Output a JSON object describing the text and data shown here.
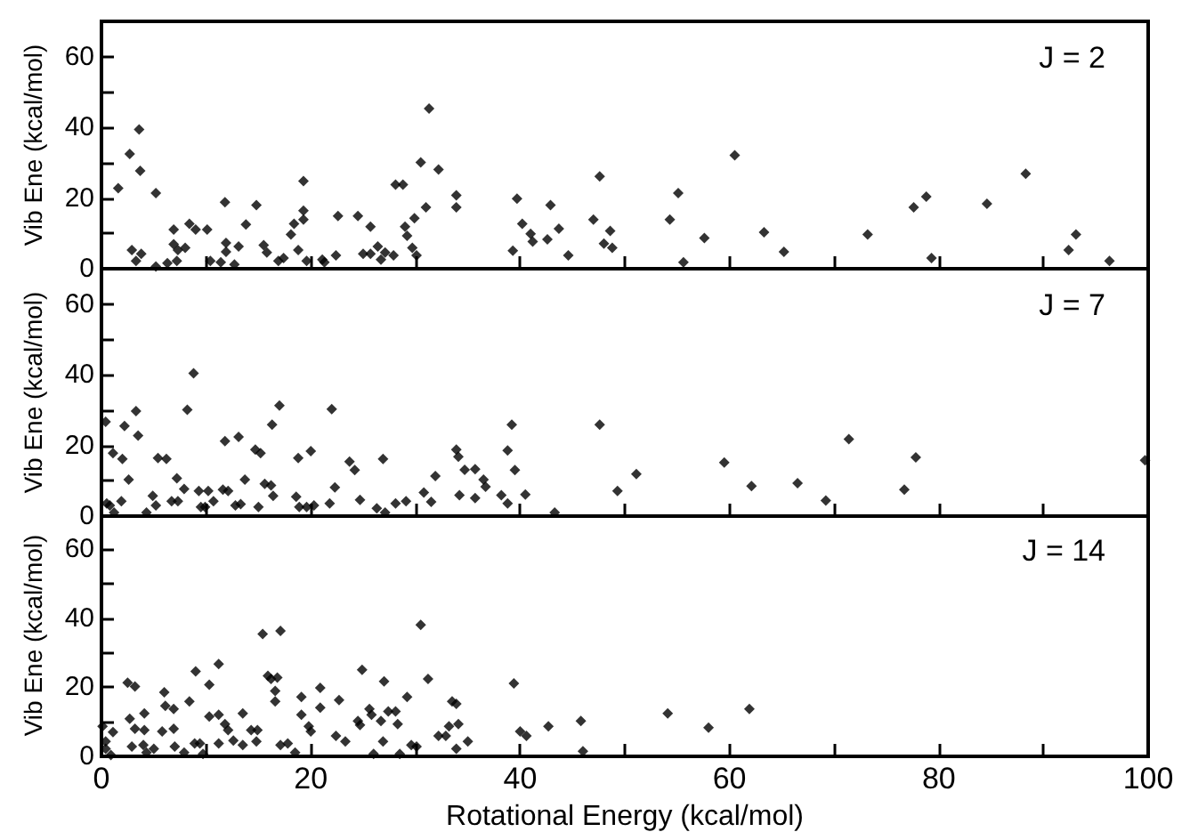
{
  "chart_data": [
    {
      "type": "scatter",
      "ylabel": "Vib Ene (kcal/mol)",
      "annotations": [
        "J = 2"
      ],
      "marker": "diamond",
      "tick_labels": "y",
      "xlim": [
        0,
        100
      ],
      "ylim": [
        0,
        70
      ],
      "xticks": [
        0,
        {
          "value": 10,
          "label": null
        },
        20,
        {
          "value": 30,
          "label": null
        },
        40,
        {
          "value": 50,
          "label": null
        },
        60,
        {
          "value": 70,
          "label": null
        },
        80,
        {
          "value": 90,
          "label": null
        },
        100
      ],
      "yticks": [
        0,
        {
          "value": 10,
          "label": null
        },
        20,
        {
          "value": 30,
          "label": null
        },
        40,
        {
          "value": 50,
          "label": null
        },
        60
      ],
      "series": [
        {
          "color": "#000000",
          "x": [
            1.6,
            2.7,
            3.6,
            3.7,
            2.9,
            3.3,
            3.8,
            5.2,
            5.2,
            6.3,
            6.9,
            7.2,
            6.9,
            7.3,
            8.0,
            8.4,
            9.0,
            10.1,
            10.4,
            11.4,
            11.8,
            11.9,
            11.9,
            12.7,
            13.1,
            13.8,
            14.8,
            15.5,
            15.8,
            16.9,
            17.4,
            18.1,
            18.4,
            18.8,
            19.3,
            19.3,
            19.3,
            19.6,
            21.1,
            21.3,
            22.4,
            22.6,
            24.5,
            25.0,
            25.7,
            25.7,
            26.4,
            26.7,
            27.1,
            27.9,
            28.1,
            28.8,
            29.0,
            29.2,
            29.7,
            30.1,
            29.9,
            30.5,
            31.0,
            31.3,
            32.2,
            33.9,
            33.9,
            39.3,
            39.7,
            40.2,
            41.0,
            41.2,
            42.6,
            42.9,
            43.7,
            44.6,
            47.0,
            47.6,
            48.0,
            48.6,
            48.8,
            54.3,
            55.1,
            55.6,
            57.6,
            60.5,
            63.3,
            65.2,
            73.2,
            77.6,
            78.8,
            79.3,
            84.6,
            88.3,
            92.4,
            93.1,
            96.3
          ],
          "values": [
            22.8,
            32.5,
            39.4,
            27.7,
            5.3,
            2.2,
            4.2,
            21.4,
            0.6,
            1.6,
            11.1,
            2.2,
            6.9,
            5.3,
            5.9,
            12.7,
            11.1,
            11.1,
            2.2,
            1.8,
            18.8,
            7.3,
            4.8,
            1.2,
            6.3,
            12.5,
            18.0,
            6.7,
            4.6,
            2.2,
            3.0,
            9.7,
            12.7,
            5.3,
            24.8,
            16.4,
            13.9,
            2.2,
            2.6,
            1.8,
            3.8,
            14.9,
            14.9,
            4.2,
            4.2,
            11.9,
            6.3,
            2.6,
            4.6,
            3.8,
            23.8,
            23.8,
            11.9,
            9.3,
            5.9,
            3.8,
            14.3,
            30.1,
            17.4,
            45.3,
            28.1,
            20.8,
            17.4,
            5.1,
            19.8,
            12.7,
            9.9,
            7.7,
            8.3,
            18.0,
            11.3,
            3.8,
            13.9,
            26.1,
            7.1,
            10.7,
            5.9,
            13.9,
            21.4,
            1.8,
            8.7,
            32.1,
            10.3,
            4.8,
            9.7,
            17.4,
            20.4,
            3.0,
            18.4,
            26.9,
            5.3,
            9.7,
            2.2
          ]
        }
      ]
    },
    {
      "type": "scatter",
      "ylabel": "Vib Ene (kcal/mol)",
      "annotations": [
        "J = 7"
      ],
      "marker": "diamond",
      "tick_labels": "y",
      "xlim": [
        0,
        100
      ],
      "ylim": [
        0,
        70
      ],
      "xticks": [
        0,
        {
          "value": 10,
          "label": null
        },
        20,
        {
          "value": 30,
          "label": null
        },
        40,
        {
          "value": 50,
          "label": null
        },
        60,
        {
          "value": 70,
          "label": null
        },
        80,
        {
          "value": 90,
          "label": null
        },
        100
      ],
      "yticks": [
        0,
        {
          "value": 10,
          "label": null
        },
        20,
        {
          "value": 30,
          "label": null
        },
        40,
        {
          "value": 50,
          "label": null
        },
        60
      ],
      "series": [
        {
          "color": "#000000",
          "x": [
            0.4,
            0.5,
            0.8,
            1.2,
            1.1,
            2.0,
            1.9,
            2.2,
            2.6,
            3.3,
            3.5,
            4.3,
            4.9,
            5.2,
            5.4,
            6.2,
            6.7,
            7.3,
            7.2,
            7.9,
            8.2,
            8.8,
            9.3,
            9.5,
            9.9,
            10.2,
            10.7,
            11.6,
            11.8,
            12.1,
            12.8,
            13.1,
            13.3,
            13.7,
            14.7,
            15.2,
            15.0,
            15.6,
            16.2,
            16.3,
            16.4,
            17.0,
            18.6,
            18.8,
            18.9,
            19.6,
            20.0,
            20.3,
            21.8,
            22.0,
            22.3,
            23.7,
            24.2,
            24.7,
            26.3,
            26.9,
            27.1,
            28.1,
            29.1,
            30.8,
            31.5,
            31.9,
            33.9,
            34.1,
            34.2,
            34.7,
            35.7,
            35.7,
            36.5,
            36.7,
            38.2,
            38.8,
            38.8,
            39.2,
            39.5,
            40.5,
            43.3,
            47.6,
            49.3,
            51.1,
            59.5,
            62.1,
            66.5,
            69.2,
            71.4,
            76.7,
            77.8,
            99.7
          ],
          "values": [
            26.7,
            3.6,
            3.0,
            1.0,
            17.8,
            16.2,
            4.2,
            25.5,
            10.3,
            29.7,
            22.8,
            1.0,
            5.7,
            3.0,
            16.4,
            16.2,
            4.2,
            4.2,
            10.7,
            7.7,
            30.1,
            40.4,
            7.1,
            2.6,
            2.6,
            7.1,
            4.2,
            7.5,
            21.2,
            7.1,
            3.0,
            22.4,
            3.4,
            10.3,
            18.8,
            17.8,
            2.6,
            9.1,
            8.7,
            25.9,
            5.7,
            31.3,
            5.5,
            16.4,
            2.6,
            2.6,
            18.4,
            3.0,
            3.6,
            30.3,
            8.1,
            15.4,
            13.0,
            4.6,
            2.2,
            16.2,
            1.0,
            3.6,
            4.2,
            6.7,
            4.0,
            11.3,
            18.8,
            16.8,
            5.9,
            13.1,
            13.3,
            5.1,
            10.3,
            8.3,
            5.9,
            18.6,
            3.6,
            25.9,
            13.0,
            6.1,
            1.0,
            25.9,
            7.1,
            11.9,
            15.2,
            8.5,
            9.3,
            4.4,
            21.8,
            7.5,
            16.6,
            15.8
          ]
        }
      ]
    },
    {
      "type": "scatter",
      "xlabel": "Rotational Energy (kcal/mol)",
      "ylabel": "Vib Ene (kcal/mol)",
      "annotations": [
        "J = 14"
      ],
      "marker": "diamond",
      "xlim": [
        0,
        100
      ],
      "ylim": [
        0,
        70
      ],
      "xticks": [
        0,
        {
          "value": 10,
          "label": null
        },
        20,
        {
          "value": 30,
          "label": null
        },
        40,
        {
          "value": 50,
          "label": null
        },
        60,
        {
          "value": 70,
          "label": null
        },
        80,
        {
          "value": 90,
          "label": null
        },
        100
      ],
      "yticks": [
        0,
        {
          "value": 10,
          "label": null
        },
        20,
        {
          "value": 30,
          "label": null
        },
        40,
        {
          "value": 50,
          "label": null
        },
        60
      ],
      "series": [
        {
          "color": "#000000",
          "x": [
            0.1,
            0.4,
            1.1,
            0.4,
            0.9,
            2.5,
            3.2,
            2.7,
            2.9,
            3.2,
            4.0,
            4.1,
            4.1,
            4.3,
            5.0,
            6.0,
            6.1,
            5.8,
            6.9,
            6.9,
            7.0,
            7.9,
            8.4,
            9.0,
            8.9,
            9.4,
            9.7,
            10.3,
            10.3,
            11.2,
            11.2,
            11.2,
            11.8,
            12.1,
            12.6,
            13.5,
            13.5,
            14.3,
            14.9,
            14.8,
            15.4,
            15.9,
            16.2,
            16.6,
            16.6,
            17.1,
            16.8,
            17.1,
            17.8,
            19.1,
            19.1,
            19.8,
            20.0,
            18.5,
            20.9,
            20.9,
            22.4,
            22.7,
            23.3,
            24.5,
            24.7,
            24.9,
            25.6,
            25.8,
            26.0,
            26.7,
            26.9,
            27.0,
            27.4,
            28.1,
            28.3,
            28.5,
            29.2,
            29.6,
            30.1,
            30.5,
            31.2,
            32.2,
            32.9,
            33.2,
            33.5,
            33.9,
            34.1,
            33.9,
            35.0,
            39.4,
            40.0,
            40.6,
            42.7,
            45.8,
            46.0,
            54.1,
            58.0,
            61.9
          ],
          "values": [
            8.7,
            4.3,
            7.0,
            2.2,
            0.4,
            21.3,
            20.2,
            10.9,
            2.8,
            8.0,
            3.3,
            12.4,
            7.6,
            1.1,
            2.2,
            18.5,
            14.6,
            7.2,
            13.7,
            8.0,
            2.8,
            1.1,
            15.9,
            24.6,
            3.7,
            3.7,
            0.7,
            20.7,
            11.5,
            26.7,
            3.7,
            12.0,
            9.3,
            7.6,
            4.6,
            12.4,
            3.3,
            7.6,
            7.6,
            4.3,
            35.4,
            23.3,
            22.4,
            18.9,
            15.9,
            36.3,
            22.8,
            3.3,
            3.7,
            17.2,
            12.0,
            8.7,
            7.2,
            1.1,
            19.8,
            14.1,
            5.9,
            16.3,
            4.3,
            10.2,
            9.1,
            25.0,
            13.7,
            12.0,
            0.7,
            10.2,
            4.3,
            21.7,
            13.0,
            13.0,
            9.3,
            0.7,
            17.2,
            3.3,
            2.8,
            38.0,
            22.4,
            5.9,
            5.9,
            8.7,
            15.9,
            15.2,
            9.3,
            2.2,
            4.3,
            21.1,
            7.2,
            5.9,
            8.7,
            10.2,
            1.5,
            12.4,
            8.3,
            13.7
          ]
        }
      ]
    }
  ]
}
